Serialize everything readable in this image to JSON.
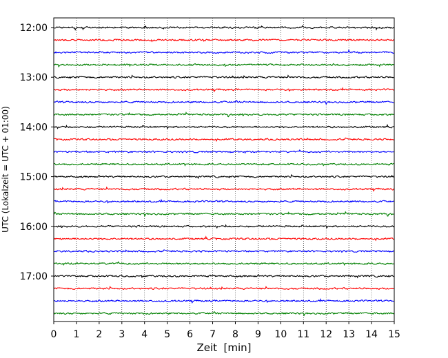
{
  "chart_data": {
    "type": "line",
    "subtype": "helicorder-seismogram",
    "xlabel": "Zeit  [min]",
    "ylabel": "UTC (Lokalzeit = UTC + 01:00)",
    "xlim": [
      0,
      15
    ],
    "x_ticks": [
      "0",
      "1",
      "2",
      "3",
      "4",
      "5",
      "6",
      "7",
      "8",
      "9",
      "10",
      "11",
      "12",
      "13",
      "14",
      "15"
    ],
    "y_ticks": [
      "12:00",
      "13:00",
      "14:00",
      "15:00",
      "16:00",
      "17:00"
    ],
    "trace_start_times": [
      "12:00",
      "12:15",
      "12:30",
      "12:45",
      "13:00",
      "13:15",
      "13:30",
      "13:45",
      "14:00",
      "14:15",
      "14:30",
      "14:45",
      "15:00",
      "15:15",
      "15:30",
      "15:45",
      "16:00",
      "16:15",
      "16:30",
      "16:45",
      "17:00",
      "17:15",
      "17:30",
      "17:45"
    ],
    "trace_minutes": 15,
    "trace_colors": [
      "#000000",
      "#ff0000",
      "#0000ff",
      "#008000"
    ],
    "grid_x": true,
    "grid_style": "dotted"
  }
}
